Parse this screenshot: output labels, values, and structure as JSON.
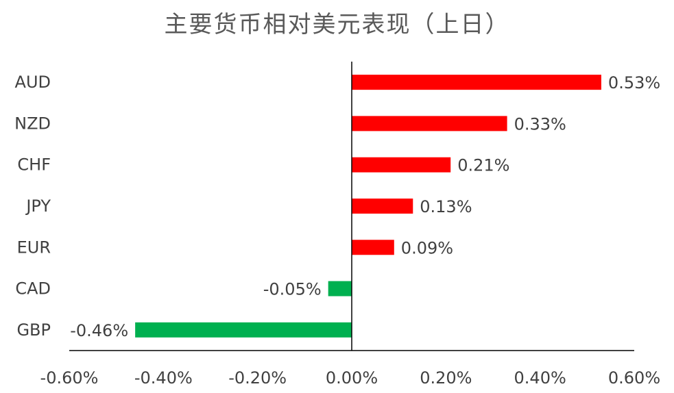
{
  "chart_data": {
    "type": "bar",
    "orientation": "horizontal",
    "title": "主要货币相对美元表现（上日）",
    "categories": [
      "AUD",
      "NZD",
      "CHF",
      "JPY",
      "EUR",
      "CAD",
      "GBP"
    ],
    "values": [
      0.53,
      0.33,
      0.21,
      0.13,
      0.09,
      -0.05,
      -0.46
    ],
    "value_labels": [
      "0.53%",
      "0.33%",
      "0.21%",
      "0.13%",
      "0.09%",
      "-0.05%",
      "-0.46%"
    ],
    "xlim": [
      -0.6,
      0.6
    ],
    "xticks": [
      -0.6,
      -0.4,
      -0.2,
      0.0,
      0.2,
      0.4,
      0.6
    ],
    "xtick_labels": [
      "-0.60%",
      "-0.40%",
      "-0.20%",
      "0.00%",
      "0.20%",
      "0.40%",
      "0.60%"
    ],
    "xlabel": "",
    "ylabel": "",
    "grid": false,
    "legend": "none",
    "colors": {
      "positive": "#ff0000",
      "negative": "#00b050",
      "axis": "#000000",
      "text": "#404040",
      "title": "#595959"
    }
  }
}
